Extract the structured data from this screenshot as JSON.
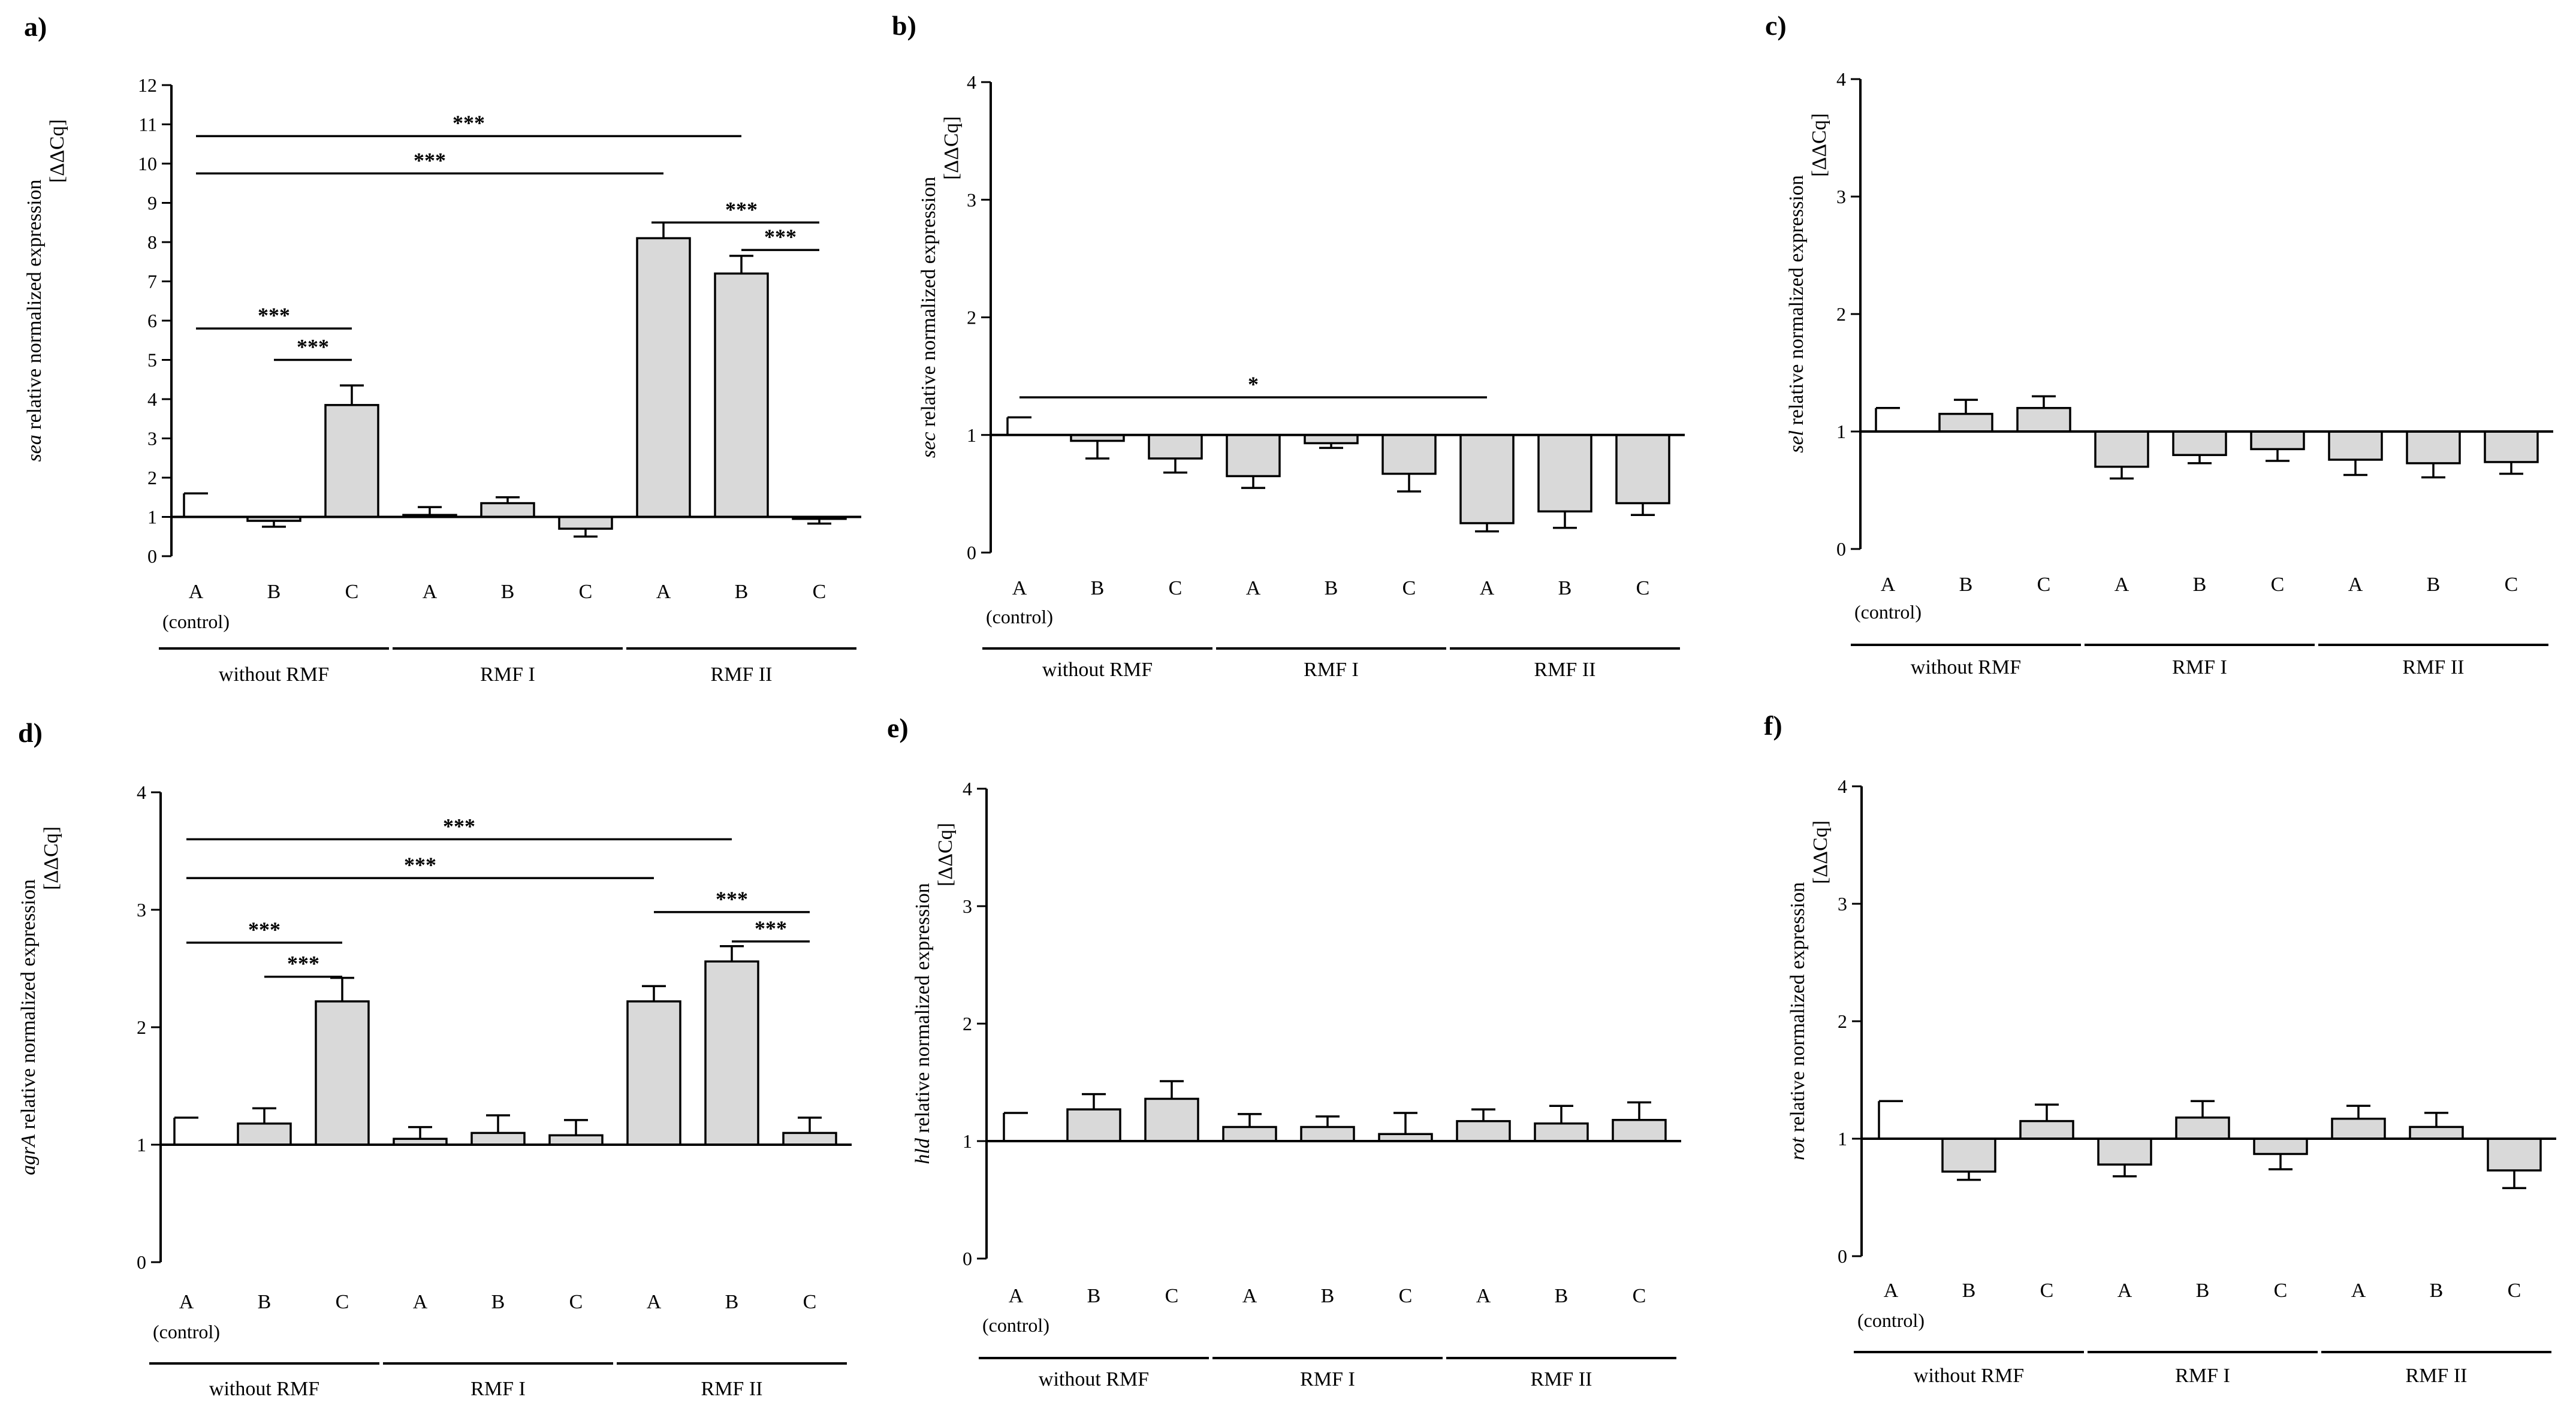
{
  "chart_data": [
    {
      "panel": "a)",
      "type": "bar",
      "gene": "sea",
      "ylabel_rest": " relative normalized expression",
      "ylabel_unit": "[ΔΔCq]",
      "ylim": [
        0,
        12
      ],
      "ticks": [
        0,
        1,
        2,
        3,
        4,
        5,
        6,
        7,
        8,
        9,
        10,
        11,
        12
      ],
      "baseline": 1,
      "categories": [
        "A",
        "B",
        "C",
        "A",
        "B",
        "C",
        "A",
        "B",
        "C"
      ],
      "control_label": "(control)",
      "groups": [
        "without RMF",
        "RMF I",
        "RMF II"
      ],
      "values": [
        1.0,
        0.9,
        3.85,
        1.05,
        1.35,
        0.7,
        8.1,
        7.2,
        0.95
      ],
      "errors": [
        0.6,
        0.15,
        0.5,
        0.2,
        0.15,
        0.2,
        0.4,
        0.45,
        0.12
      ],
      "significance": [
        {
          "from": 0,
          "to": 7,
          "label": "***",
          "level": 10.7
        },
        {
          "from": 0,
          "to": 6,
          "label": "***",
          "level": 9.75
        },
        {
          "from": 6,
          "to": 8,
          "label": "***",
          "level": 8.5
        },
        {
          "from": 7,
          "to": 8,
          "label": "***",
          "level": 7.8
        },
        {
          "from": 0,
          "to": 2,
          "label": "***",
          "level": 5.8
        },
        {
          "from": 1,
          "to": 2,
          "label": "***",
          "level": 5.0
        }
      ]
    },
    {
      "panel": "b)",
      "type": "bar",
      "gene": "sec",
      "ylabel_rest": " relative normalized expression",
      "ylabel_unit": "[ΔΔCq]",
      "ylim": [
        0,
        4
      ],
      "ticks": [
        0,
        1,
        2,
        3,
        4
      ],
      "baseline": 1,
      "categories": [
        "A",
        "B",
        "C",
        "A",
        "B",
        "C",
        "A",
        "B",
        "C"
      ],
      "control_label": "(control)",
      "groups": [
        "without RMF",
        "RMF I",
        "RMF II"
      ],
      "values": [
        1.0,
        0.95,
        0.8,
        0.65,
        0.93,
        0.67,
        0.25,
        0.35,
        0.42
      ],
      "errors": [
        0.15,
        0.15,
        0.12,
        0.1,
        0.04,
        0.15,
        0.07,
        0.14,
        0.1
      ],
      "significance": [
        {
          "from": 0,
          "to": 6,
          "label": "*",
          "level": 1.32
        }
      ]
    },
    {
      "panel": "c)",
      "type": "bar",
      "gene": "sel",
      "ylabel_rest": " relative normalized expression",
      "ylabel_unit": "[ΔΔCq]",
      "ylim": [
        0,
        4
      ],
      "ticks": [
        0,
        1,
        2,
        3,
        4
      ],
      "baseline": 1,
      "categories": [
        "A",
        "B",
        "C",
        "A",
        "B",
        "C",
        "A",
        "B",
        "C"
      ],
      "control_label": "(control)",
      "groups": [
        "without RMF",
        "RMF I",
        "RMF II"
      ],
      "values": [
        1.0,
        1.15,
        1.2,
        0.7,
        0.8,
        0.85,
        0.76,
        0.73,
        0.74
      ],
      "errors": [
        0.2,
        0.12,
        0.1,
        0.1,
        0.07,
        0.1,
        0.13,
        0.12,
        0.1
      ],
      "significance": []
    },
    {
      "panel": "d)",
      "type": "bar",
      "gene": "agrA",
      "ylabel_rest": " relative normalized expression",
      "ylabel_unit": "[ΔΔCq]",
      "ylim": [
        0,
        4
      ],
      "ticks": [
        0,
        1,
        2,
        3,
        4
      ],
      "baseline": 1,
      "categories": [
        "A",
        "B",
        "C",
        "A",
        "B",
        "C",
        "A",
        "B",
        "C"
      ],
      "control_label": "(control)",
      "groups": [
        "without RMF",
        "RMF I",
        "RMF II"
      ],
      "values": [
        1.0,
        1.18,
        2.22,
        1.05,
        1.1,
        1.08,
        2.22,
        2.56,
        1.1
      ],
      "errors": [
        0.23,
        0.13,
        0.2,
        0.1,
        0.15,
        0.13,
        0.13,
        0.13,
        0.13
      ],
      "significance": [
        {
          "from": 0,
          "to": 7,
          "label": "***",
          "level": 3.6
        },
        {
          "from": 0,
          "to": 6,
          "label": "***",
          "level": 3.27
        },
        {
          "from": 6,
          "to": 8,
          "label": "***",
          "level": 2.98
        },
        {
          "from": 7,
          "to": 8,
          "label": "***",
          "level": 2.73
        },
        {
          "from": 0,
          "to": 2,
          "label": "***",
          "level": 2.72
        },
        {
          "from": 1,
          "to": 2,
          "label": "***",
          "level": 2.43
        }
      ]
    },
    {
      "panel": "e)",
      "type": "bar",
      "gene": "hld",
      "ylabel_rest": " relative normalized expression",
      "ylabel_unit": "[ΔΔCq]",
      "ylim": [
        0,
        4
      ],
      "ticks": [
        0,
        1,
        2,
        3,
        4
      ],
      "baseline": 1,
      "categories": [
        "A",
        "B",
        "C",
        "A",
        "B",
        "C",
        "A",
        "B",
        "C"
      ],
      "control_label": "(control)",
      "groups": [
        "without RMF",
        "RMF I",
        "RMF II"
      ],
      "values": [
        1.0,
        1.27,
        1.36,
        1.12,
        1.12,
        1.06,
        1.17,
        1.15,
        1.18
      ],
      "errors": [
        0.24,
        0.13,
        0.15,
        0.11,
        0.09,
        0.18,
        0.1,
        0.15,
        0.15
      ],
      "significance": []
    },
    {
      "panel": "f)",
      "type": "bar",
      "gene": "rot",
      "ylabel_rest": " relative normalized expression",
      "ylabel_unit": "[ΔΔCq]",
      "ylim": [
        0,
        4
      ],
      "ticks": [
        0,
        1,
        2,
        3,
        4
      ],
      "baseline": 1,
      "categories": [
        "A",
        "B",
        "C",
        "A",
        "B",
        "C",
        "A",
        "B",
        "C"
      ],
      "control_label": "(control)",
      "groups": [
        "without RMF",
        "RMF I",
        "RMF II"
      ],
      "values": [
        1.0,
        0.72,
        1.15,
        0.78,
        1.18,
        0.87,
        1.17,
        1.1,
        0.73
      ],
      "errors": [
        0.32,
        0.07,
        0.14,
        0.1,
        0.14,
        0.13,
        0.11,
        0.12,
        0.15
      ],
      "significance": []
    }
  ]
}
